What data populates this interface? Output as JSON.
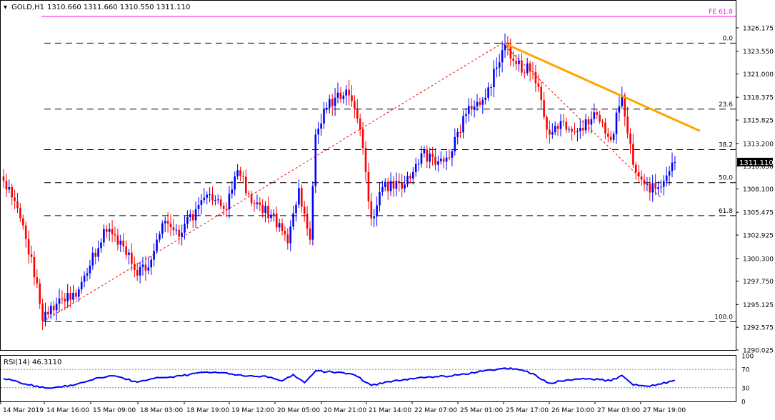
{
  "header": {
    "symbol": "GOLD,H1",
    "ohlc": "1310.660 1311.660 1310.550 1311.110"
  },
  "colors": {
    "bull": "#0000ff",
    "bear": "#ff0000",
    "trendline": "#ffa500",
    "fibo_target": "#ff00ff",
    "fibo_line": "#000000",
    "zigzag": "#ff0000",
    "rsi_line": "#0000ff",
    "price_label_bg": "#000000"
  },
  "chart_data": [
    {
      "type": "candlestick",
      "title": "GOLD,H1",
      "ylim": [
        1290.025,
        1327.45
      ],
      "y_ticks": [
        "1326.175",
        "1323.550",
        "1321.000",
        "1318.375",
        "1315.825",
        "1313.200",
        "1310.650",
        "1308.100",
        "1305.475",
        "1302.925",
        "1300.300",
        "1297.750",
        "1295.125",
        "1292.575",
        "1290.025"
      ],
      "x_ticks": [
        "14 Mar 2019",
        "14 Mar 16:00",
        "15 Mar 09:00",
        "18 Mar 03:00",
        "18 Mar 19:00",
        "19 Mar 12:00",
        "20 Mar 05:00",
        "20 Mar 21:00",
        "21 Mar 14:00",
        "22 Mar 07:00",
        "25 Mar 01:00",
        "25 Mar 17:00",
        "26 Mar 10:00",
        "27 Mar 03:00",
        "27 Mar 19:00"
      ],
      "current_price": "1311.110",
      "anchors": [
        {
          "i": 0,
          "p": 1309.0
        },
        {
          "i": 6,
          "p": 1304.8
        },
        {
          "i": 12,
          "p": 1297.5
        },
        {
          "i": 14,
          "p": 1293.3
        },
        {
          "i": 20,
          "p": 1295.8
        },
        {
          "i": 26,
          "p": 1296.0
        },
        {
          "i": 31,
          "p": 1299.5
        },
        {
          "i": 36,
          "p": 1303.6
        },
        {
          "i": 42,
          "p": 1302.3
        },
        {
          "i": 47,
          "p": 1299.0
        },
        {
          "i": 52,
          "p": 1299.3
        },
        {
          "i": 58,
          "p": 1304.5
        },
        {
          "i": 64,
          "p": 1303.2
        },
        {
          "i": 70,
          "p": 1306.3
        },
        {
          "i": 74,
          "p": 1307.5
        },
        {
          "i": 80,
          "p": 1305.8
        },
        {
          "i": 84,
          "p": 1310.2
        },
        {
          "i": 90,
          "p": 1306.4
        },
        {
          "i": 96,
          "p": 1305.2
        },
        {
          "i": 102,
          "p": 1302.0
        },
        {
          "i": 106,
          "p": 1308.2
        },
        {
          "i": 110,
          "p": 1302.4
        },
        {
          "i": 112,
          "p": 1314.2
        },
        {
          "i": 116,
          "p": 1317.2
        },
        {
          "i": 120,
          "p": 1318.9
        },
        {
          "i": 124,
          "p": 1318.6
        },
        {
          "i": 128,
          "p": 1314.8
        },
        {
          "i": 132,
          "p": 1304.8
        },
        {
          "i": 136,
          "p": 1308.3
        },
        {
          "i": 144,
          "p": 1308.6
        },
        {
          "i": 150,
          "p": 1312.1
        },
        {
          "i": 156,
          "p": 1311.2
        },
        {
          "i": 160,
          "p": 1311.6
        },
        {
          "i": 166,
          "p": 1316.5
        },
        {
          "i": 172,
          "p": 1318.1
        },
        {
          "i": 178,
          "p": 1322.3
        },
        {
          "i": 180,
          "p": 1324.4
        },
        {
          "i": 184,
          "p": 1322.1
        },
        {
          "i": 190,
          "p": 1321.2
        },
        {
          "i": 196,
          "p": 1314.2
        },
        {
          "i": 200,
          "p": 1315.7
        },
        {
          "i": 206,
          "p": 1314.6
        },
        {
          "i": 212,
          "p": 1316.7
        },
        {
          "i": 218,
          "p": 1313.6
        },
        {
          "i": 222,
          "p": 1318.6
        },
        {
          "i": 226,
          "p": 1310.8
        },
        {
          "i": 230,
          "p": 1308.6
        },
        {
          "i": 234,
          "p": 1308.1
        },
        {
          "i": 238,
          "p": 1309.6
        },
        {
          "i": 241,
          "p": 1311.11
        }
      ],
      "fibonacci": {
        "levels": [
          {
            "label": "0.0",
            "price": 1324.45
          },
          {
            "label": "23.6",
            "price": 1317.05
          },
          {
            "label": "38.2",
            "price": 1312.5
          },
          {
            "label": "50.0",
            "price": 1308.8
          },
          {
            "label": "61.8",
            "price": 1305.1
          },
          {
            "label": "100.0",
            "price": 1293.2
          }
        ],
        "target_label": "FE 61.8",
        "target_price": 1327.45
      },
      "zigzag": [
        {
          "i": 14,
          "p": 1293.2
        },
        {
          "i": 179,
          "p": 1324.45
        },
        {
          "i": 236,
          "p": 1307.1
        }
      ],
      "trendline": [
        {
          "i": 180,
          "p": 1324.4
        },
        {
          "i": 250,
          "p": 1314.6
        }
      ]
    },
    {
      "type": "line",
      "title": "RSI(14) 46.3110",
      "series_name": "RSI(14)",
      "last_value": "46.3110",
      "ylim": [
        0,
        100
      ],
      "y_ticks": [
        "100",
        "70",
        "30",
        "0"
      ],
      "levels": [
        70,
        30
      ],
      "anchors": [
        {
          "i": 0,
          "v": 50
        },
        {
          "i": 8,
          "v": 38
        },
        {
          "i": 15,
          "v": 29
        },
        {
          "i": 25,
          "v": 35
        },
        {
          "i": 34,
          "v": 52
        },
        {
          "i": 40,
          "v": 56
        },
        {
          "i": 48,
          "v": 42
        },
        {
          "i": 56,
          "v": 52
        },
        {
          "i": 64,
          "v": 56
        },
        {
          "i": 70,
          "v": 63
        },
        {
          "i": 76,
          "v": 64
        },
        {
          "i": 82,
          "v": 60
        },
        {
          "i": 88,
          "v": 56
        },
        {
          "i": 96,
          "v": 53
        },
        {
          "i": 100,
          "v": 45
        },
        {
          "i": 104,
          "v": 59
        },
        {
          "i": 108,
          "v": 41
        },
        {
          "i": 112,
          "v": 67
        },
        {
          "i": 118,
          "v": 64
        },
        {
          "i": 126,
          "v": 58
        },
        {
          "i": 132,
          "v": 35
        },
        {
          "i": 140,
          "v": 45
        },
        {
          "i": 150,
          "v": 53
        },
        {
          "i": 160,
          "v": 55
        },
        {
          "i": 170,
          "v": 64
        },
        {
          "i": 180,
          "v": 73
        },
        {
          "i": 188,
          "v": 66
        },
        {
          "i": 196,
          "v": 40
        },
        {
          "i": 202,
          "v": 47
        },
        {
          "i": 210,
          "v": 50
        },
        {
          "i": 218,
          "v": 45
        },
        {
          "i": 222,
          "v": 57
        },
        {
          "i": 226,
          "v": 36
        },
        {
          "i": 232,
          "v": 33
        },
        {
          "i": 236,
          "v": 38
        },
        {
          "i": 241,
          "v": 46.311
        }
      ]
    }
  ]
}
